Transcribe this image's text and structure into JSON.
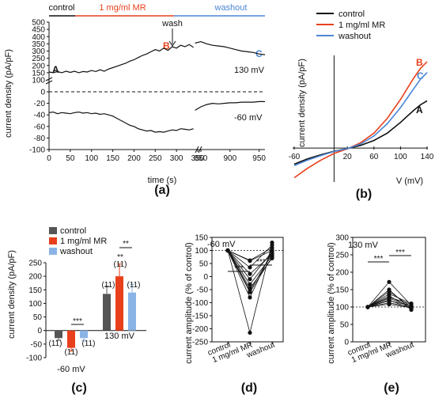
{
  "panels": {
    "a": "(a)",
    "b": "(b)",
    "c": "(c)",
    "d": "(d)",
    "e": "(e)"
  },
  "colors": {
    "control": "#111111",
    "mr": "#e8401c",
    "washout": "#4b86d6",
    "control_bar": "#555555",
    "washout_bar": "#8ab4e6"
  },
  "chart_data": [
    {
      "id": "a",
      "type": "line",
      "header_labels": [
        "control",
        "1 mg/ml MR",
        "washout"
      ],
      "wash_annotation": "wash",
      "xlabel": "time (s)",
      "ylabel": "current density (pA/pF)",
      "xticks": [
        "0",
        "50",
        "100",
        "150",
        "200",
        "250",
        "300",
        "350",
        "850",
        "900",
        "950"
      ],
      "yticks_upper": [
        "100",
        "150",
        "200",
        "250",
        "300",
        "350",
        "400",
        "450",
        "500"
      ],
      "yticks_lower": [
        "-100",
        "-80",
        "-60",
        "-40",
        "-20",
        "0"
      ],
      "point_labels": {
        "A": "A",
        "B": "B",
        "C": "C"
      },
      "trace_labels": {
        "pos": "130 mV",
        "neg": "-60 mV"
      },
      "trace_130mV": {
        "x": [
          0,
          10,
          20,
          30,
          40,
          50,
          60,
          70,
          80,
          90,
          100,
          110,
          120,
          130,
          140,
          150,
          160,
          170,
          180,
          190,
          200,
          210,
          220,
          230,
          240,
          250,
          260,
          270,
          280,
          290,
          300,
          310,
          320,
          330,
          340
        ],
        "y": [
          155,
          150,
          158,
          150,
          160,
          152,
          160,
          150,
          158,
          155,
          165,
          158,
          170,
          160,
          175,
          185,
          195,
          205,
          215,
          230,
          240,
          255,
          270,
          280,
          295,
          310,
          300,
          320,
          305,
          330,
          320,
          340,
          330,
          345,
          325
        ]
      },
      "trace_130mV_washout": {
        "x": [
          840,
          850,
          860,
          870,
          880,
          890,
          900,
          910,
          920,
          930,
          940,
          950,
          960
        ],
        "y": [
          355,
          365,
          350,
          340,
          335,
          330,
          320,
          310,
          300,
          295,
          290,
          280,
          275
        ]
      },
      "trace_neg60mV": {
        "x": [
          0,
          10,
          20,
          30,
          40,
          50,
          60,
          70,
          80,
          90,
          100,
          110,
          120,
          130,
          140,
          150,
          160,
          170,
          180,
          190,
          200,
          210,
          220,
          230,
          240,
          250,
          260,
          270,
          280,
          290,
          300,
          310,
          320,
          330,
          340
        ],
        "y": [
          -36,
          -35,
          -38,
          -36,
          -37,
          -38,
          -36,
          -35,
          -37,
          -36,
          -38,
          -37,
          -39,
          -38,
          -40,
          -42,
          -46,
          -50,
          -54,
          -58,
          -60,
          -64,
          -66,
          -68,
          -67,
          -70,
          -69,
          -70,
          -68,
          -66,
          -67,
          -64,
          -65,
          -66,
          -64
        ]
      },
      "trace_neg60mV_washout": {
        "x": [
          840,
          850,
          860,
          870,
          880,
          890,
          900,
          910,
          920,
          930,
          940,
          950,
          960
        ],
        "y": [
          -32,
          -26,
          -22,
          -20,
          -21,
          -20,
          -19,
          -19,
          -18,
          -18,
          -18,
          -17,
          -17
        ]
      }
    },
    {
      "id": "b",
      "type": "line",
      "xlabel": "V (mV)",
      "ylabel": "current density (pA/pF)",
      "xticks": [
        "-60",
        "20",
        "60",
        "100",
        "140"
      ],
      "legend": [
        "control",
        "1 mg/ml MR",
        "washout"
      ],
      "legend_position": "top-right",
      "end_labels": {
        "A": "A",
        "B": "B",
        "C": "C"
      },
      "series": [
        {
          "name": "control",
          "x": [
            -60,
            -40,
            -20,
            0,
            20,
            40,
            60,
            80,
            100,
            110,
            120,
            130,
            140
          ],
          "y": [
            -60,
            -40,
            -25,
            -12,
            -2,
            10,
            28,
            55,
            95,
            118,
            140,
            160,
            175
          ]
        },
        {
          "name": "1 mg/ml MR",
          "x": [
            -60,
            -40,
            -20,
            0,
            20,
            40,
            60,
            80,
            100,
            110,
            120,
            130,
            140
          ],
          "y": [
            -110,
            -75,
            -45,
            -20,
            -3,
            20,
            55,
            110,
            180,
            220,
            260,
            295,
            320
          ]
        },
        {
          "name": "washout",
          "x": [
            -60,
            -40,
            -20,
            0,
            20,
            40,
            60,
            80,
            100,
            110,
            120,
            130,
            140
          ],
          "y": [
            -65,
            -45,
            -28,
            -13,
            -2,
            15,
            45,
            90,
            150,
            185,
            220,
            255,
            280
          ]
        }
      ]
    },
    {
      "id": "c",
      "type": "bar",
      "ylabel": "current density (pA/pF)",
      "yticks": [
        "-100",
        "-50",
        "0",
        "50",
        "100",
        "150",
        "200",
        "250"
      ],
      "legend": [
        "control",
        "1 mg/ml MR",
        "washout"
      ],
      "legend_position": "top-left",
      "groups": [
        {
          "label": "-60 mV",
          "values": [
            -28,
            -64,
            -28
          ],
          "errors": [
            8,
            12,
            8
          ],
          "n": [
            "(11)",
            "(11)",
            "(11)"
          ],
          "sig": "***"
        },
        {
          "label": "130 mV",
          "values": [
            135,
            200,
            140
          ],
          "errors": [
            28,
            45,
            30
          ],
          "n": [
            "(11)",
            "(11)",
            "(11)"
          ],
          "sig_top": "**",
          "sig_mr": "**"
        }
      ]
    },
    {
      "id": "d",
      "type": "scatter",
      "title": "-60 mV",
      "ylabel": "current amplitude (% of control)",
      "yticks": [
        "-250",
        "-200",
        "-150",
        "-100",
        "-50",
        "0",
        "50",
        "100",
        "150"
      ],
      "categories": [
        "control",
        "1 mg/ml MR",
        "washout"
      ],
      "sig": [
        "***",
        "***"
      ],
      "paired": [
        [
          100,
          62,
          110
        ],
        [
          100,
          60,
          100
        ],
        [
          100,
          35,
          120
        ],
        [
          100,
          10,
          85
        ],
        [
          100,
          -10,
          95
        ],
        [
          100,
          -30,
          80
        ],
        [
          100,
          -45,
          70
        ],
        [
          100,
          -55,
          90
        ],
        [
          100,
          -60,
          75
        ],
        [
          100,
          -80,
          100
        ],
        [
          100,
          -215,
          130
        ]
      ]
    },
    {
      "id": "e",
      "type": "scatter",
      "title": "130 mV",
      "ylabel": "current amplitude (% of control)",
      "yticks": [
        "0",
        "50",
        "100",
        "150",
        "200",
        "250",
        "300"
      ],
      "categories": [
        "control",
        "1 mg/ml MR",
        "washout"
      ],
      "sig": [
        "***",
        "***"
      ],
      "paired": [
        [
          100,
          108,
          98
        ],
        [
          100,
          112,
          100
        ],
        [
          100,
          118,
          104
        ],
        [
          100,
          120,
          95
        ],
        [
          100,
          125,
          102
        ],
        [
          100,
          128,
          108
        ],
        [
          100,
          132,
          96
        ],
        [
          100,
          138,
          110
        ],
        [
          100,
          145,
          100
        ],
        [
          100,
          150,
          92
        ],
        [
          100,
          172,
          105
        ]
      ]
    }
  ]
}
